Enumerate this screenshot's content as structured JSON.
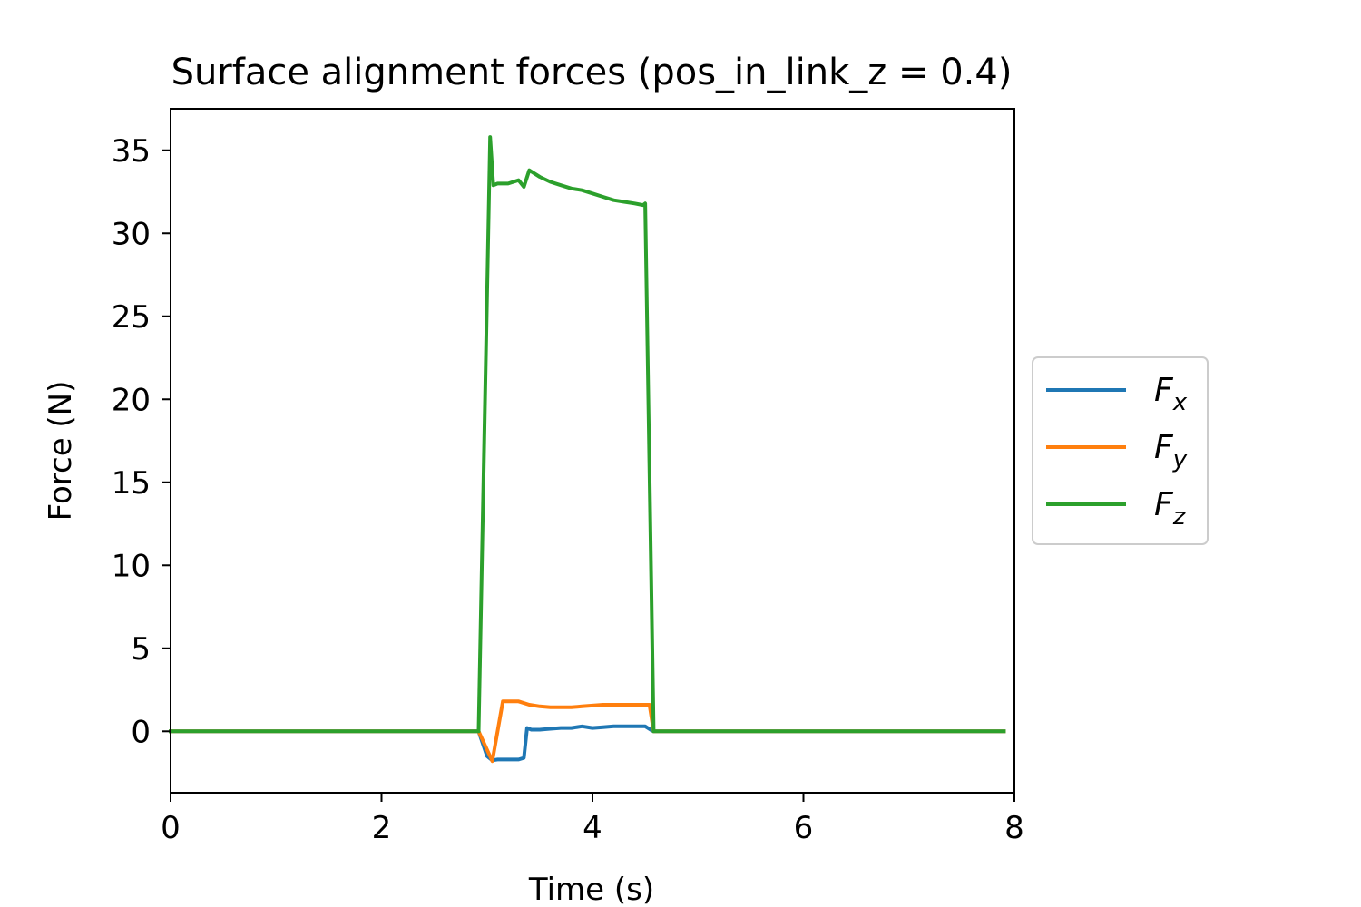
{
  "chart_data": {
    "type": "line",
    "title": "Surface alignment forces (pos_in_link_z = 0.4)",
    "xlabel": "Time (s)",
    "ylabel": "Force (N)",
    "xlim": [
      0,
      8
    ],
    "ylim": [
      -3.7,
      37.5
    ],
    "xticks": [
      0,
      2,
      4,
      6,
      8
    ],
    "yticks": [
      0,
      5,
      10,
      15,
      20,
      25,
      30,
      35
    ],
    "grid": false,
    "legend_position": "right, outside plot",
    "series": [
      {
        "name": "F",
        "subscript": "x",
        "color": "#1f77b4",
        "points": [
          [
            0,
            0
          ],
          [
            2.92,
            0
          ],
          [
            3.0,
            -1.5
          ],
          [
            3.05,
            -1.75
          ],
          [
            3.1,
            -1.7
          ],
          [
            3.2,
            -1.7
          ],
          [
            3.3,
            -1.7
          ],
          [
            3.35,
            -1.6
          ],
          [
            3.38,
            0.2
          ],
          [
            3.42,
            0.1
          ],
          [
            3.5,
            0.1
          ],
          [
            3.6,
            0.15
          ],
          [
            3.7,
            0.2
          ],
          [
            3.8,
            0.2
          ],
          [
            3.9,
            0.3
          ],
          [
            4.0,
            0.2
          ],
          [
            4.1,
            0.25
          ],
          [
            4.2,
            0.3
          ],
          [
            4.3,
            0.3
          ],
          [
            4.4,
            0.3
          ],
          [
            4.5,
            0.3
          ],
          [
            4.55,
            0.1
          ],
          [
            4.58,
            0
          ],
          [
            7.9,
            0
          ]
        ]
      },
      {
        "name": "F",
        "subscript": "y",
        "color": "#ff7f0e",
        "points": [
          [
            0,
            0
          ],
          [
            2.92,
            0
          ],
          [
            3.05,
            -1.8
          ],
          [
            3.15,
            1.8
          ],
          [
            3.3,
            1.8
          ],
          [
            3.4,
            1.6
          ],
          [
            3.5,
            1.5
          ],
          [
            3.6,
            1.45
          ],
          [
            3.7,
            1.45
          ],
          [
            3.8,
            1.45
          ],
          [
            3.9,
            1.5
          ],
          [
            4.0,
            1.55
          ],
          [
            4.1,
            1.6
          ],
          [
            4.2,
            1.6
          ],
          [
            4.3,
            1.6
          ],
          [
            4.4,
            1.6
          ],
          [
            4.5,
            1.6
          ],
          [
            4.54,
            1.6
          ],
          [
            4.58,
            0
          ],
          [
            7.9,
            0
          ]
        ]
      },
      {
        "name": "F",
        "subscript": "z",
        "color": "#2ca02c",
        "points": [
          [
            0,
            0
          ],
          [
            2.92,
            0
          ],
          [
            3.03,
            35.8
          ],
          [
            3.06,
            32.9
          ],
          [
            3.1,
            33.0
          ],
          [
            3.2,
            33.0
          ],
          [
            3.3,
            33.2
          ],
          [
            3.35,
            32.8
          ],
          [
            3.4,
            33.8
          ],
          [
            3.5,
            33.4
          ],
          [
            3.6,
            33.1
          ],
          [
            3.7,
            32.9
          ],
          [
            3.8,
            32.7
          ],
          [
            3.9,
            32.6
          ],
          [
            4.0,
            32.4
          ],
          [
            4.1,
            32.2
          ],
          [
            4.2,
            32.0
          ],
          [
            4.3,
            31.9
          ],
          [
            4.4,
            31.8
          ],
          [
            4.48,
            31.7
          ],
          [
            4.5,
            31.8
          ],
          [
            4.58,
            0
          ],
          [
            7.9,
            0
          ]
        ]
      }
    ]
  }
}
